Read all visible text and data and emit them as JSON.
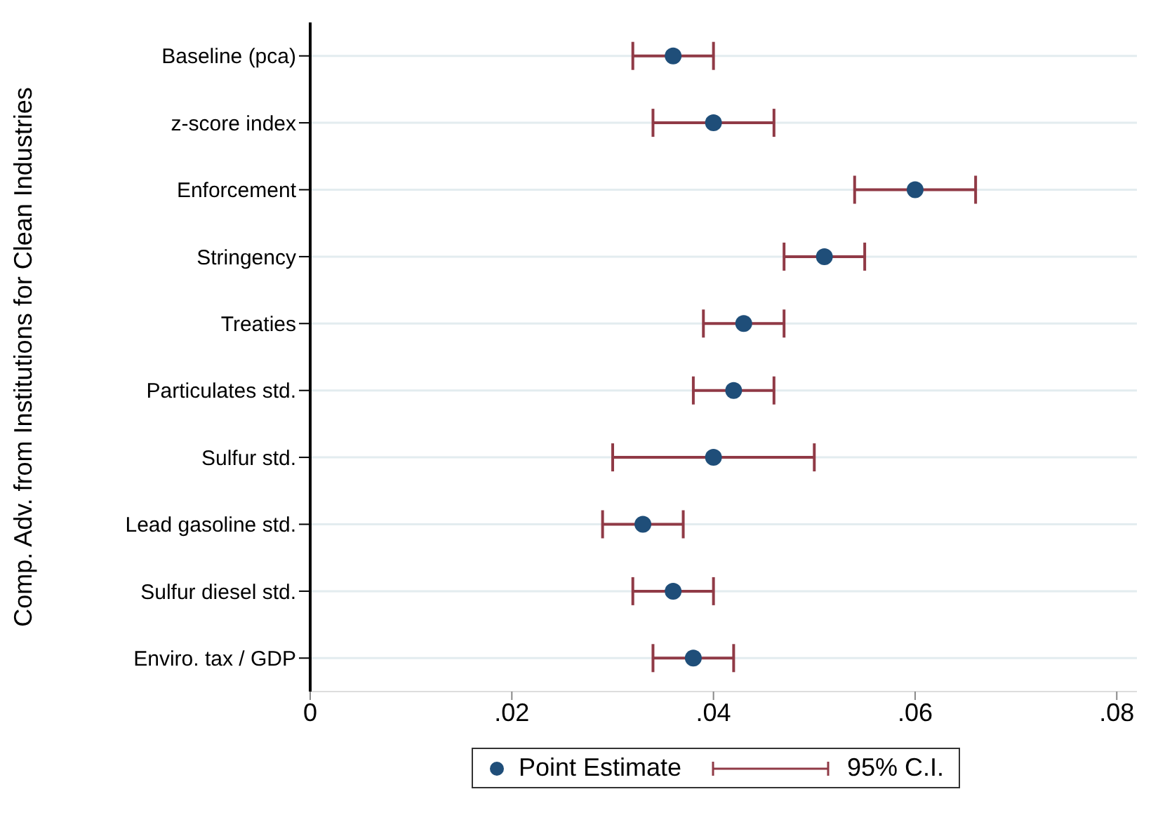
{
  "chart_data": {
    "type": "scatter",
    "orientation": "horizontal",
    "ylabel": "Comp. Adv. from Institutions for Clean Industries",
    "categories": [
      "Baseline (pca)",
      "z-score index",
      "Enforcement",
      "Stringency",
      "Treaties",
      "Particulates std.",
      "Sulfur std.",
      "Lead gasoline std.",
      "Sulfur diesel std.",
      "Enviro. tax / GDP"
    ],
    "series": [
      {
        "name": "Point Estimate",
        "color": "#1f4e79",
        "values": [
          0.036,
          0.04,
          0.06,
          0.051,
          0.043,
          0.042,
          0.04,
          0.033,
          0.036,
          0.038
        ],
        "errors": [
          [
            0.032,
            0.04
          ],
          [
            0.034,
            0.046
          ],
          [
            0.054,
            0.066
          ],
          [
            0.047,
            0.055
          ],
          [
            0.039,
            0.047
          ],
          [
            0.038,
            0.046
          ],
          [
            0.03,
            0.05
          ],
          [
            0.029,
            0.037
          ],
          [
            0.032,
            0.04
          ],
          [
            0.034,
            0.042
          ]
        ]
      }
    ],
    "xlim": [
      0,
      0.082
    ],
    "xticks": [
      {
        "value": 0,
        "label": "0"
      },
      {
        "value": 0.02,
        "label": ".02"
      },
      {
        "value": 0.04,
        "label": ".04"
      },
      {
        "value": 0.06,
        "label": ".06"
      },
      {
        "value": 0.08,
        "label": ".08"
      }
    ],
    "grid": "y",
    "legend": "bottom",
    "marker": "circle",
    "annotations": [
      "95% C.I."
    ]
  }
}
